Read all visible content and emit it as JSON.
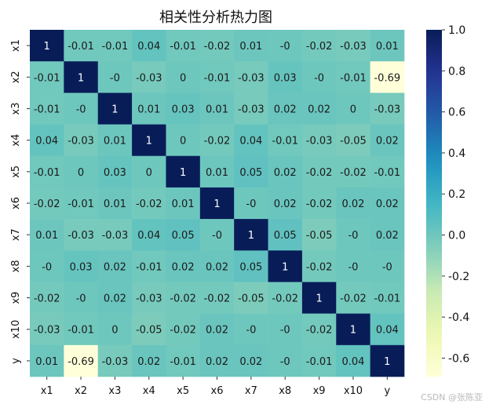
{
  "chart_data": {
    "type": "heatmap",
    "title": "相关性分析热力图",
    "xlabel": "",
    "ylabel": "",
    "x_labels": [
      "x1",
      "x2",
      "x3",
      "x4",
      "x5",
      "x6",
      "x7",
      "x8",
      "x9",
      "x10",
      "y"
    ],
    "y_labels": [
      "x1",
      "x2",
      "x3",
      "x4",
      "x5",
      "x6",
      "x7",
      "x8",
      "x9",
      "x10",
      "y"
    ],
    "values": [
      [
        1,
        -0.01,
        -0.01,
        0.04,
        -0.01,
        -0.02,
        0.01,
        0,
        -0.02,
        -0.03,
        0.01
      ],
      [
        -0.01,
        1,
        0,
        -0.03,
        0,
        -0.01,
        -0.03,
        0.03,
        0,
        -0.01,
        -0.69
      ],
      [
        -0.01,
        0,
        1,
        0.01,
        0.03,
        0.01,
        -0.03,
        0.02,
        0.02,
        0,
        -0.03
      ],
      [
        0.04,
        -0.03,
        0.01,
        1,
        0,
        -0.02,
        0.04,
        -0.01,
        -0.03,
        -0.05,
        0.02
      ],
      [
        -0.01,
        0,
        0.03,
        0,
        1,
        0.01,
        0.05,
        0.02,
        -0.02,
        -0.02,
        -0.01
      ],
      [
        -0.02,
        -0.01,
        0.01,
        -0.02,
        0.01,
        1,
        0,
        0.02,
        -0.02,
        0.02,
        0.02
      ],
      [
        0.01,
        -0.03,
        -0.03,
        0.04,
        0.05,
        0,
        1,
        0.05,
        -0.05,
        0,
        0.02
      ],
      [
        0,
        0.03,
        0.02,
        -0.01,
        0.02,
        0.02,
        0.05,
        1,
        -0.02,
        0,
        0
      ],
      [
        -0.02,
        0,
        0.02,
        -0.03,
        -0.02,
        -0.02,
        -0.05,
        -0.02,
        1,
        -0.02,
        -0.01
      ],
      [
        -0.03,
        -0.01,
        0,
        -0.05,
        -0.02,
        0.02,
        0,
        0,
        -0.02,
        1,
        0.04
      ],
      [
        0.01,
        -0.69,
        -0.03,
        0.02,
        -0.01,
        0.02,
        0.02,
        0,
        -0.01,
        0.04,
        1
      ]
    ],
    "colorbar": {
      "min": -0.69,
      "max": 1.0,
      "ticks": [
        "1.0",
        "0.8",
        "0.6",
        "0.4",
        "0.2",
        "0.0",
        "-0.2",
        "-0.4",
        "-0.6"
      ],
      "colormap": "YlGnBu"
    }
  },
  "watermark": "CSDN @张陈亚"
}
